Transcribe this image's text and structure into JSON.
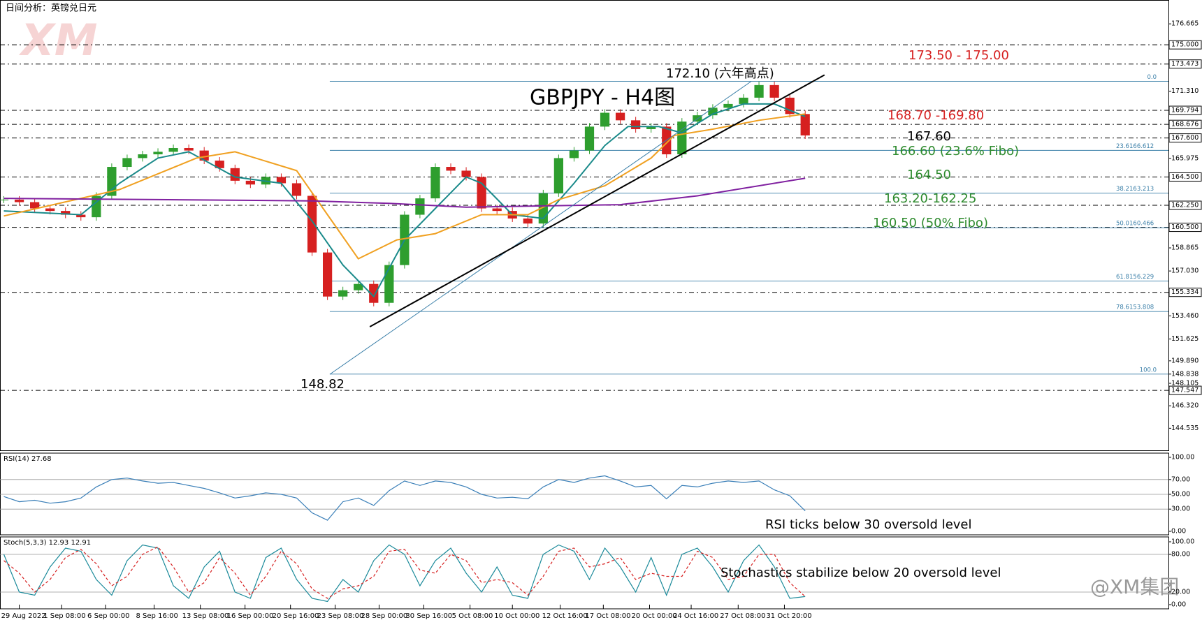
{
  "header": {
    "title": "日间分析：英镑兑日元",
    "logo": "XM",
    "watermark": "@XM集团"
  },
  "chart_data": [
    {
      "type": "candle",
      "title": "GBPJPY - H4图",
      "ylim": [
        142.78,
        178.56
      ],
      "yticks": [
        {
          "value": 176.665,
          "label": "176.665"
        },
        {
          "value": 175,
          "label": "175.000",
          "level": true
        },
        {
          "value": 173.473,
          "label": "173.473",
          "level": true
        },
        {
          "value": 171.31,
          "label": "171.310"
        },
        {
          "value": 169.794,
          "label": "169.794",
          "level": true
        },
        {
          "value": 168.676,
          "label": "168.676",
          "level": true
        },
        {
          "value": 167.6,
          "label": "167.600",
          "level": true
        },
        {
          "value": 165.975,
          "label": "165.975"
        },
        {
          "value": 164.5,
          "label": "164.500",
          "level": true
        },
        {
          "value": 162.25,
          "label": "162.250",
          "level": true
        },
        {
          "value": 160.5,
          "label": "160.500",
          "level": true
        },
        {
          "value": 158.865,
          "label": "158.865"
        },
        {
          "value": 157.03,
          "label": "157.030"
        },
        {
          "value": 155.334,
          "label": "155.334",
          "level": true
        },
        {
          "value": 153.46,
          "label": "153.460"
        },
        {
          "value": 151.625,
          "label": "151.625"
        },
        {
          "value": 149.89,
          "label": "149.890"
        },
        {
          "value": 148.838,
          "label": "148.838"
        },
        {
          "value": 148.105,
          "label": "148.105"
        },
        {
          "value": 147.547,
          "label": "147.547",
          "level": true
        },
        {
          "value": 146.32,
          "label": "146.320"
        },
        {
          "value": 144.535,
          "label": "144.535"
        }
      ],
      "xticks": [
        {
          "value": 1,
          "label": "29 Aug 2022"
        },
        {
          "value": 3.75,
          "label": "1 Sep 08:00"
        },
        {
          "value": 6.6,
          "label": "6 Sep 00:00"
        },
        {
          "value": 9.75,
          "label": "8 Sep 16:00"
        },
        {
          "value": 12.75,
          "label": "13 Sep 08:00"
        },
        {
          "value": 15.65,
          "label": "16 Sep 00:00"
        },
        {
          "value": 18.6,
          "label": "20 Sep 16:00"
        },
        {
          "value": 21.5,
          "label": "23 Sep 08:00"
        },
        {
          "value": 24.35,
          "label": "28 Sep 00:00"
        },
        {
          "value": 27.25,
          "label": "30 Sep 16:00"
        },
        {
          "value": 30.25,
          "label": "5 Oct 08:00"
        },
        {
          "value": 33,
          "label": "10 Oct 00:00"
        },
        {
          "value": 36.1,
          "label": "12 Oct 16:00"
        },
        {
          "value": 38.9,
          "label": "17 Oct 08:00"
        },
        {
          "value": 41.9,
          "label": "20 Oct 00:00"
        },
        {
          "value": 44.6,
          "label": "24 Oct 16:00"
        },
        {
          "value": 47.65,
          "label": "27 Oct 08:00"
        },
        {
          "value": 50.65,
          "label": "31 Oct 20:00"
        }
      ],
      "up_color": "#2e9e2e",
      "down_color": "#d62020",
      "values": [
        162.7,
        162.5,
        162.0,
        161.8,
        161.5,
        161.3,
        163.0,
        165.3,
        166.0,
        166.3,
        166.5,
        166.8,
        166.6,
        165.8,
        165.2,
        164.2,
        163.9,
        164.5,
        164.0,
        163.0,
        158.5,
        155.0,
        155.5,
        156.0,
        154.5,
        157.5,
        161.5,
        162.8,
        165.3,
        165.0,
        164.5,
        162.0,
        161.8,
        161.2,
        160.8,
        163.2,
        166.0,
        166.6,
        168.5,
        169.6,
        169.0,
        168.3,
        168.5,
        166.3,
        168.9,
        169.4,
        170.0,
        170.3,
        170.8,
        171.8,
        170.8,
        169.5,
        167.8
      ],
      "series": [
        {
          "color": "#1a8a8a",
          "x": [
            0,
            5,
            7.5,
            10,
            12,
            15,
            18,
            20,
            22,
            24,
            26,
            28,
            30,
            31,
            33,
            35,
            37,
            39,
            40.5,
            42.5,
            44,
            46,
            48,
            50,
            52
          ],
          "values": [
            161.8,
            161.5,
            164.0,
            166.0,
            166.5,
            164.5,
            164.0,
            161.0,
            157.5,
            155.0,
            159.5,
            162.0,
            164.5,
            164.0,
            161.5,
            161.2,
            164.0,
            167.0,
            168.5,
            168.5,
            168.0,
            169.5,
            170.3,
            170.3,
            169.3
          ]
        },
        {
          "color": "#f0a020",
          "x": [
            0,
            7.5,
            12.5,
            15,
            19,
            21,
            23,
            25.5,
            28,
            31,
            34,
            36,
            39,
            42,
            43.5,
            46,
            49,
            52
          ],
          "values": [
            161.4,
            163.5,
            166.0,
            166.5,
            165.0,
            161.5,
            158.0,
            159.5,
            160.0,
            161.5,
            161.5,
            162.7,
            163.8,
            166.0,
            167.8,
            168.3,
            169.0,
            169.5
          ]
        },
        {
          "color": "#8020a0",
          "x": [
            0,
            10,
            20,
            25,
            30,
            40,
            45,
            52
          ],
          "values": [
            162.8,
            162.7,
            162.6,
            162.4,
            162.1,
            162.3,
            163.0,
            164.4
          ]
        }
      ],
      "trendline": {
        "color": "#000000",
        "x": [
          23.75,
          53.25
        ],
        "values": [
          152.6,
          172.6
        ]
      },
      "fib_line": {
        "color": "#3a7fa8",
        "x": [
          21.15,
          48.5
        ],
        "values": [
          148.82,
          172.1
        ]
      },
      "fibo": [
        {
          "ratio": "0.0",
          "value": 172.1
        },
        {
          "ratio": "23.6",
          "value": 166.612
        },
        {
          "ratio": "38.2",
          "value": 163.213
        },
        {
          "ratio": "50.0",
          "value": 160.466
        },
        {
          "ratio": "61.8",
          "value": 156.229
        },
        {
          "ratio": "78.6",
          "value": 153.808
        },
        {
          "ratio": "100.0",
          "value": 148.838
        }
      ],
      "annotations": [
        {
          "text": "172.10 (六年高点)",
          "color": "#000000"
        },
        {
          "text": "148.82",
          "color": "#000000"
        },
        {
          "text": "173.50 - 175.00",
          "color": "#d62020"
        },
        {
          "text": "168.70 -169.80",
          "color": "#d62020"
        },
        {
          "text": "167.60",
          "color": "#000000"
        },
        {
          "text": "166.60 (23.6% Fibo)",
          "color": "#2e8b2e"
        },
        {
          "text": "164.50",
          "color": "#2e8b2e"
        },
        {
          "text": "163.20-162.25",
          "color": "#2e8b2e"
        },
        {
          "text": "160.50 (50% Fibo)",
          "color": "#2e8b2e"
        }
      ]
    },
    {
      "type": "line",
      "title": "RSI(14) 27.68",
      "ylim": [
        0,
        100
      ],
      "yticks": [
        {
          "value": 100,
          "label": "100.00"
        },
        {
          "value": 70,
          "label": "70.00"
        },
        {
          "value": 50,
          "label": "50.00"
        },
        {
          "value": 30,
          "label": "30.00"
        },
        {
          "value": 0,
          "label": "0.00"
        }
      ],
      "series": [
        {
          "color": "#3a7fb8",
          "values": [
            47,
            40,
            42,
            38,
            40,
            45,
            60,
            70,
            72,
            68,
            65,
            66,
            62,
            58,
            52,
            45,
            48,
            52,
            50,
            45,
            25,
            15,
            40,
            45,
            35,
            55,
            68,
            62,
            68,
            66,
            60,
            50,
            45,
            46,
            44,
            60,
            70,
            66,
            72,
            75,
            68,
            60,
            62,
            44,
            62,
            60,
            65,
            68,
            66,
            68,
            56,
            48,
            27.68
          ]
        }
      ],
      "annotation": "RSI ticks below 30 oversold level"
    },
    {
      "type": "line",
      "title": "Stoch(5,3,3) 12.93 12.91",
      "ylim": [
        0,
        100
      ],
      "yticks": [
        {
          "value": 100,
          "label": "100.00"
        },
        {
          "value": 80,
          "label": "80.00"
        },
        {
          "value": 20,
          "label": "20.00"
        },
        {
          "value": 0,
          "label": "0.00"
        }
      ],
      "series": [
        {
          "color": "#1a8a9a",
          "values": [
            80,
            20,
            15,
            60,
            90,
            85,
            40,
            15,
            70,
            95,
            90,
            30,
            10,
            60,
            85,
            20,
            10,
            75,
            90,
            40,
            10,
            5,
            40,
            20,
            70,
            95,
            80,
            30,
            70,
            90,
            50,
            20,
            60,
            15,
            10,
            80,
            95,
            85,
            40,
            90,
            60,
            20,
            75,
            15,
            80,
            90,
            60,
            20,
            70,
            95,
            60,
            10,
            12.93
          ]
        },
        {
          "color": "#d62020",
          "dashed": true,
          "values": [
            70,
            50,
            20,
            40,
            75,
            88,
            65,
            30,
            45,
            80,
            92,
            60,
            20,
            35,
            75,
            50,
            15,
            45,
            85,
            65,
            25,
            10,
            25,
            30,
            45,
            85,
            88,
            55,
            50,
            80,
            70,
            35,
            40,
            35,
            15,
            45,
            85,
            90,
            60,
            65,
            75,
            40,
            50,
            45,
            45,
            85,
            75,
            40,
            45,
            80,
            80,
            35,
            12.91
          ]
        }
      ],
      "annotation": "Stochastics stabilize below 20 oversold level"
    }
  ]
}
